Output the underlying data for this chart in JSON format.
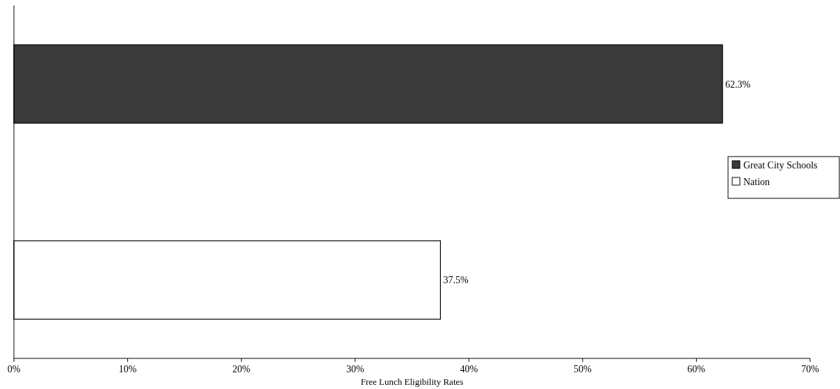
{
  "chart_data": {
    "type": "bar",
    "orientation": "horizontal",
    "xlabel": "Free Lunch Eligibility Rates",
    "categories": [
      null
    ],
    "series": [
      {
        "name": "Great City Schools",
        "color": "#3a3a3a",
        "values": [
          62.3
        ],
        "value_labels": [
          "62.3%"
        ]
      },
      {
        "name": "Nation",
        "color": "#ffffff",
        "values": [
          37.5
        ],
        "value_labels": [
          "37.5%"
        ]
      }
    ],
    "xlim": [
      0,
      70
    ],
    "xticks": [
      {
        "value": 0,
        "label": "0%"
      },
      {
        "value": 10,
        "label": "10%"
      },
      {
        "value": 20,
        "label": "20%"
      },
      {
        "value": 30,
        "label": "30%"
      },
      {
        "value": 40,
        "label": "40%"
      },
      {
        "value": 50,
        "label": "50%"
      },
      {
        "value": 60,
        "label": "60%"
      },
      {
        "value": 70,
        "label": "70%"
      }
    ],
    "grid": false,
    "legend": "right"
  }
}
